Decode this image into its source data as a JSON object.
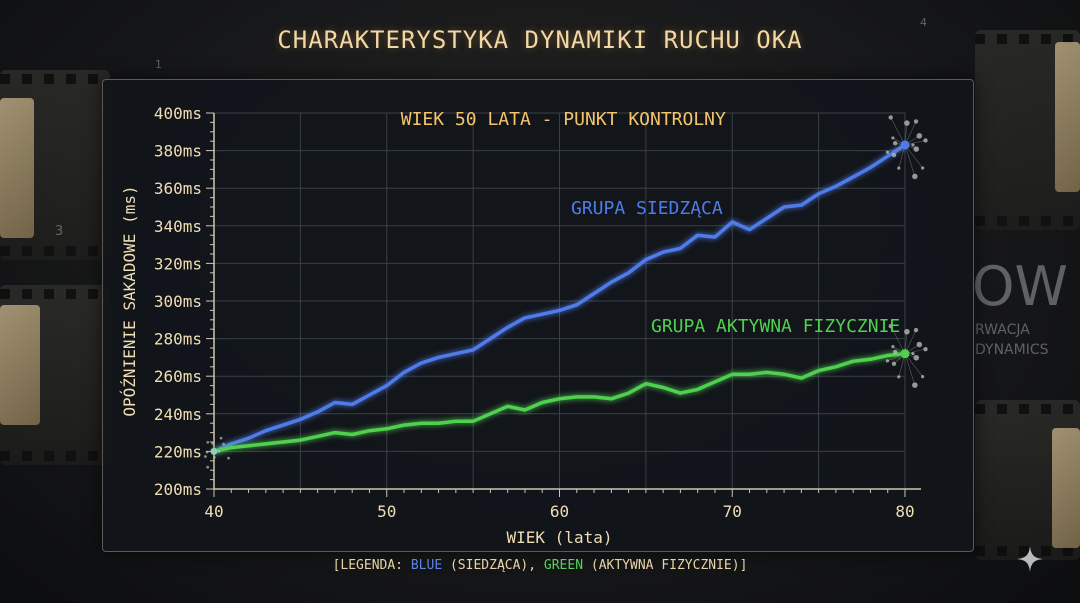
{
  "chart_data": {
    "type": "line",
    "title": "CHARAKTERYSTYKA DYNAMIKI RUCHU OKA",
    "xlabel": "WIEK (lata)",
    "ylabel": "OPÓŹNIENIE SAKADOWE (ms)",
    "xlim": [
      40,
      80
    ],
    "ylim": [
      200,
      400
    ],
    "x_ticks": [
      "40",
      "50",
      "60",
      "70",
      "80"
    ],
    "y_ticks": [
      "200ms",
      "220ms",
      "240ms",
      "260ms",
      "280ms",
      "300ms",
      "320ms",
      "340ms",
      "360ms",
      "380ms",
      "400ms"
    ],
    "grid": true,
    "annotation": {
      "label": "WIEK 50 LATA - PUNKT KONTROLNY",
      "x": 50
    },
    "x": [
      40,
      41,
      42,
      43,
      44,
      45,
      46,
      47,
      48,
      49,
      50,
      51,
      52,
      53,
      54,
      55,
      56,
      57,
      58,
      59,
      60,
      61,
      62,
      63,
      64,
      65,
      66,
      67,
      68,
      69,
      70,
      71,
      72,
      73,
      74,
      75,
      76,
      77,
      78,
      79,
      80
    ],
    "series": [
      {
        "name": "GRUPA SIEDZĄCA",
        "color": "#4f7bea",
        "values": [
          220,
          224,
          227,
          231,
          234,
          237,
          241,
          246,
          245,
          250,
          255,
          262,
          267,
          270,
          272,
          274,
          280,
          286,
          291,
          293,
          295,
          298,
          304,
          310,
          315,
          322,
          326,
          328,
          335,
          334,
          342,
          338,
          344,
          350,
          351,
          357,
          361,
          366,
          371,
          377,
          383
        ]
      },
      {
        "name": "GRUPA AKTYWNA FIZYCZNIE",
        "color": "#4fd14f",
        "values": [
          220,
          222,
          223,
          224,
          225,
          226,
          228,
          230,
          229,
          231,
          232,
          234,
          235,
          235,
          236,
          236,
          240,
          244,
          242,
          246,
          248,
          249,
          249,
          248,
          251,
          256,
          254,
          251,
          253,
          257,
          261,
          261,
          262,
          261,
          259,
          263,
          265,
          268,
          269,
          271,
          272
        ]
      }
    ]
  },
  "legend": {
    "open": "[LEGENDA: ",
    "blue": "BLUE",
    "blue_desc": " (SIEDZĄCA), ",
    "green": "GREEN",
    "green_desc": " (AKTYWNA FIZYCZNIE)]"
  },
  "background": {
    "ghost_big": "OW",
    "ghost_line1": "RWACJA",
    "ghost_line2": "DYNAMICS",
    "film_num_1": "1",
    "film_num_2": "4",
    "film_num_3": "3"
  },
  "colors": {
    "accent": "#f3c46a",
    "panel_bg": "#11141a"
  }
}
